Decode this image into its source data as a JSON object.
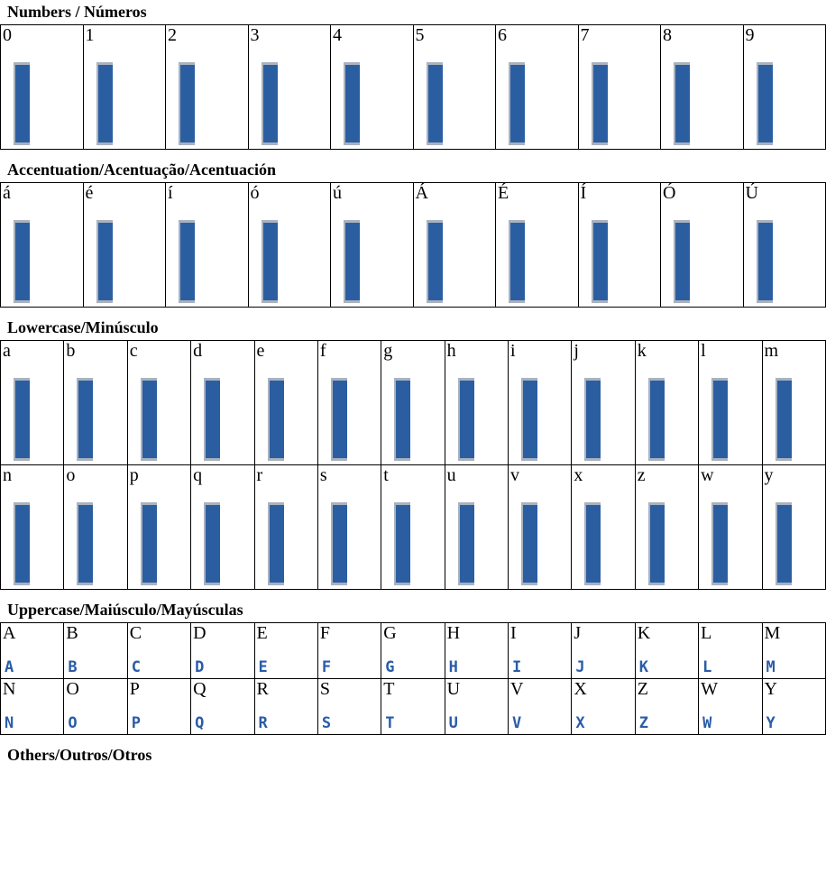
{
  "colors": {
    "bar_fill": "#2b5ea1",
    "bar_edge": "#a9b2bf",
    "pixel_glyph": "#2a5ca8",
    "table_border": "#000000",
    "background": "#ffffff"
  },
  "sections": [
    {
      "id": "numbers",
      "heading": "Numbers / Números",
      "cell_type": "bar",
      "rows": [
        [
          "0",
          "1",
          "2",
          "3",
          "4",
          "5",
          "6",
          "7",
          "8",
          "9"
        ]
      ]
    },
    {
      "id": "accentuation",
      "heading": "Accentuation/Acentuação/Acentuación",
      "cell_type": "bar",
      "rows": [
        [
          "á",
          "é",
          "í",
          "ó",
          "ú",
          "Á",
          "É",
          "Í",
          "Ó",
          "Ú"
        ]
      ]
    },
    {
      "id": "lowercase",
      "heading": "Lowercase/Minúsculo",
      "cell_type": "bar",
      "rows": [
        [
          "a",
          "b",
          "c",
          "d",
          "e",
          "f",
          "g",
          "h",
          "i",
          "j",
          "k",
          "l",
          "m"
        ],
        [
          "n",
          "o",
          "p",
          "q",
          "r",
          "s",
          "t",
          "u",
          "v",
          "x",
          "z",
          "w",
          "y"
        ]
      ]
    },
    {
      "id": "uppercase",
      "heading": "Uppercase/Maiúsculo/Mayúsculas",
      "cell_type": "pixel",
      "rows": [
        [
          "A",
          "B",
          "C",
          "D",
          "E",
          "F",
          "G",
          "H",
          "I",
          "J",
          "K",
          "L",
          "M"
        ],
        [
          "N",
          "O",
          "P",
          "Q",
          "R",
          "S",
          "T",
          "U",
          "V",
          "X",
          "Z",
          "W",
          "Y"
        ]
      ]
    },
    {
      "id": "others",
      "heading": "Others/Outros/Otros",
      "cell_type": "none",
      "rows": []
    }
  ]
}
